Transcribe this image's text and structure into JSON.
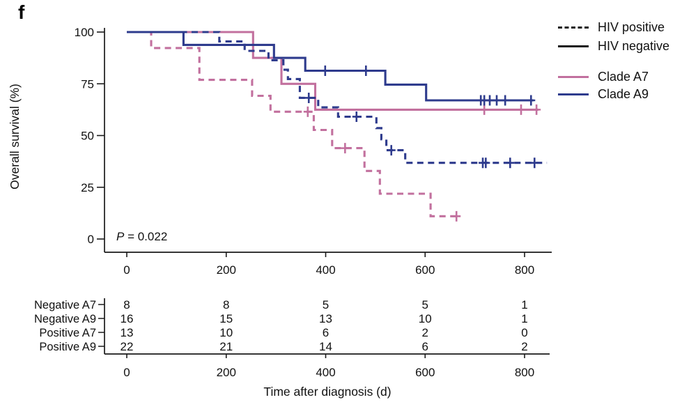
{
  "panel_label": "f",
  "pvalue": {
    "p": "P",
    "rest": "= 0.022"
  },
  "axes": {
    "x_title": "Time after diagnosis (d)",
    "y_title": "Overall survival (%)"
  },
  "colors": {
    "pink": "#c2709e",
    "blue": "#2e3b8d",
    "label_blue": "#2e3f99",
    "ink": "#1a1a1a"
  },
  "legend": {
    "items": [
      {
        "label": "HIV positive",
        "dashed": true,
        "color": "#1a1a1a"
      },
      {
        "label": "HIV negative",
        "dashed": false,
        "color": "#1a1a1a"
      },
      {
        "label": "Clade A7",
        "dashed": false,
        "color": "#c2709e"
      },
      {
        "label": "Clade A9",
        "dashed": false,
        "color": "#2e3b8d"
      }
    ]
  },
  "chart_data": {
    "type": "line",
    "variant": "kaplan_meier_step",
    "title": "",
    "xlabel": "Time after diagnosis (d)",
    "ylabel": "Overall survival (%)",
    "xlim": [
      0,
      855
    ],
    "ylim": [
      0,
      100
    ],
    "xticks": [
      0,
      200,
      400,
      600,
      800
    ],
    "yticks": [
      0,
      25,
      50,
      75,
      100
    ],
    "grid": false,
    "pvalue_text": "P = 0.022",
    "series": [
      {
        "name": "Negative A7",
        "clade": "A7",
        "hiv": "negative",
        "color": "#c2709e",
        "dashed": false,
        "points": [
          [
            0,
            100
          ],
          [
            254,
            100
          ],
          [
            254,
            87.5
          ],
          [
            311,
            87.5
          ],
          [
            311,
            75
          ],
          [
            379,
            75
          ],
          [
            379,
            62.5
          ],
          [
            828,
            62.5
          ]
        ],
        "censors": [
          [
            719,
            62.5
          ],
          [
            793,
            62.5
          ],
          [
            824,
            62.5
          ]
        ]
      },
      {
        "name": "Negative A9",
        "clade": "A9",
        "hiv": "negative",
        "color": "#2e3b8d",
        "dashed": false,
        "points": [
          [
            0,
            100
          ],
          [
            114,
            100
          ],
          [
            114,
            93.8
          ],
          [
            296,
            93.8
          ],
          [
            296,
            87.5
          ],
          [
            359,
            87.5
          ],
          [
            359,
            81.3
          ],
          [
            520,
            81.3
          ],
          [
            520,
            74.6
          ],
          [
            602,
            74.6
          ],
          [
            602,
            67
          ],
          [
            818,
            67
          ]
        ],
        "censors": [
          [
            399,
            81.3
          ],
          [
            481,
            81.3
          ],
          [
            712,
            67
          ],
          [
            719,
            67
          ],
          [
            730,
            67
          ],
          [
            744,
            67
          ],
          [
            761,
            67
          ],
          [
            813,
            67
          ]
        ]
      },
      {
        "name": "Positive A7",
        "clade": "A7",
        "hiv": "positive",
        "color": "#c2709e",
        "dashed": true,
        "points": [
          [
            0,
            100
          ],
          [
            49,
            100
          ],
          [
            49,
            92.3
          ],
          [
            146,
            92.3
          ],
          [
            146,
            76.9
          ],
          [
            252,
            76.9
          ],
          [
            252,
            69.2
          ],
          [
            289,
            69.2
          ],
          [
            289,
            61.5
          ],
          [
            376,
            61.5
          ],
          [
            376,
            52.7
          ],
          [
            413,
            52.7
          ],
          [
            413,
            43.9
          ],
          [
            478,
            43.9
          ],
          [
            478,
            32.9
          ],
          [
            509,
            32.9
          ],
          [
            509,
            21.9
          ],
          [
            611,
            21.9
          ],
          [
            611,
            11
          ],
          [
            672,
            11
          ]
        ],
        "censors": [
          [
            364,
            61.5
          ],
          [
            439,
            43.9
          ],
          [
            663,
            11
          ]
        ]
      },
      {
        "name": "Positive A9",
        "clade": "A9",
        "hiv": "positive",
        "color": "#2e3b8d",
        "dashed": true,
        "points": [
          [
            0,
            100
          ],
          [
            186,
            100
          ],
          [
            186,
            95.5
          ],
          [
            237,
            95.5
          ],
          [
            237,
            90.9
          ],
          [
            285,
            90.9
          ],
          [
            285,
            86.4
          ],
          [
            315,
            86.4
          ],
          [
            315,
            81.8
          ],
          [
            324,
            81.8
          ],
          [
            324,
            77.3
          ],
          [
            348,
            77.3
          ],
          [
            348,
            68.2
          ],
          [
            385,
            68.2
          ],
          [
            385,
            63.6
          ],
          [
            425,
            63.6
          ],
          [
            425,
            59.1
          ],
          [
            502,
            59.1
          ],
          [
            502,
            53.6
          ],
          [
            512,
            53.6
          ],
          [
            512,
            48.2
          ],
          [
            522,
            48.2
          ],
          [
            522,
            42.9
          ],
          [
            560,
            42.9
          ],
          [
            560,
            36.8
          ],
          [
            845,
            36.8
          ]
        ],
        "censors": [
          [
            366,
            68.2
          ],
          [
            462,
            59.1
          ],
          [
            532,
            42.9
          ],
          [
            716,
            36.8
          ],
          [
            722,
            36.8
          ],
          [
            771,
            36.8
          ],
          [
            820,
            36.8
          ]
        ]
      }
    ],
    "risk_table": {
      "columns": [
        0,
        200,
        400,
        600,
        800
      ],
      "rows": [
        {
          "label": "Negative A7",
          "color": "#c0699e",
          "values": [
            8,
            8,
            5,
            5,
            1
          ]
        },
        {
          "label": "Negative A9",
          "color": "#2e3f99",
          "values": [
            16,
            15,
            13,
            10,
            1
          ]
        },
        {
          "label": "Positive A7",
          "color": "#c0699e",
          "values": [
            13,
            10,
            6,
            2,
            0
          ]
        },
        {
          "label": "Positive A9",
          "color": "#2e3f99",
          "values": [
            22,
            21,
            14,
            6,
            2
          ]
        }
      ]
    }
  }
}
